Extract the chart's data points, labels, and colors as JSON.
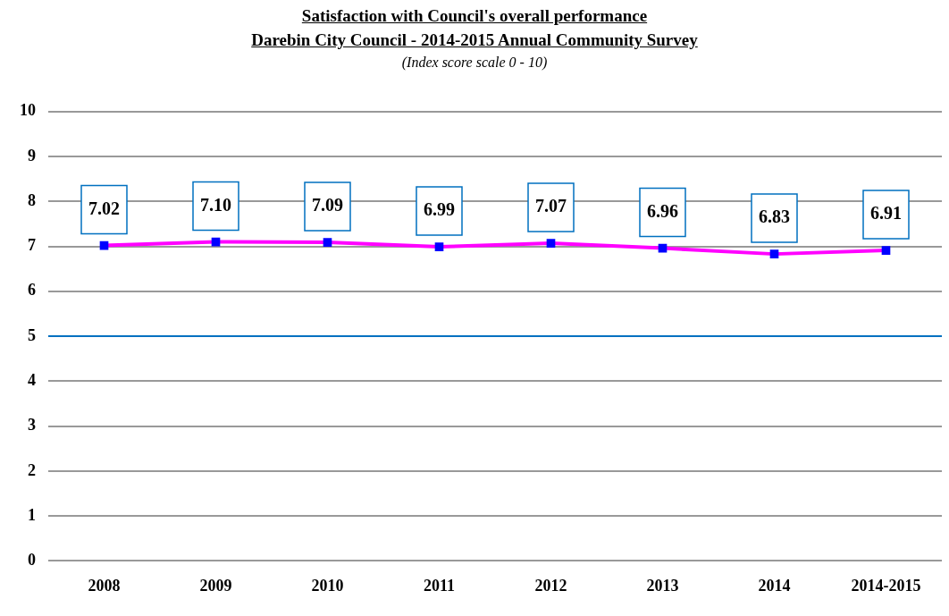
{
  "chart_data": {
    "type": "line",
    "title": "Satisfaction with Council's overall performance",
    "subtitle": "Darebin City Council - 2014-2015 Annual Community Survey",
    "annotations": [
      "(Index score scale 0 - 10)"
    ],
    "categories": [
      "2008",
      "2009",
      "2010",
      "2011",
      "2012",
      "2013",
      "2014",
      "2014-2015"
    ],
    "series": [
      {
        "color": "#ff00ff",
        "values": [
          7.02,
          7.1,
          7.09,
          6.99,
          7.07,
          6.96,
          6.83,
          6.91
        ],
        "value_labels": [
          "7.02",
          "7.10",
          "7.09",
          "6.99",
          "7.07",
          "6.96",
          "6.83",
          "6.91"
        ]
      }
    ],
    "ylim": [
      0,
      10
    ],
    "yticks": [
      0,
      1,
      2,
      3,
      4,
      5,
      6,
      7,
      8,
      9,
      10
    ],
    "grid": "y",
    "legend": false,
    "marker": "square",
    "ref_lines": [
      {
        "axis": "y",
        "value": 5,
        "color": "#0070c0"
      }
    ]
  }
}
